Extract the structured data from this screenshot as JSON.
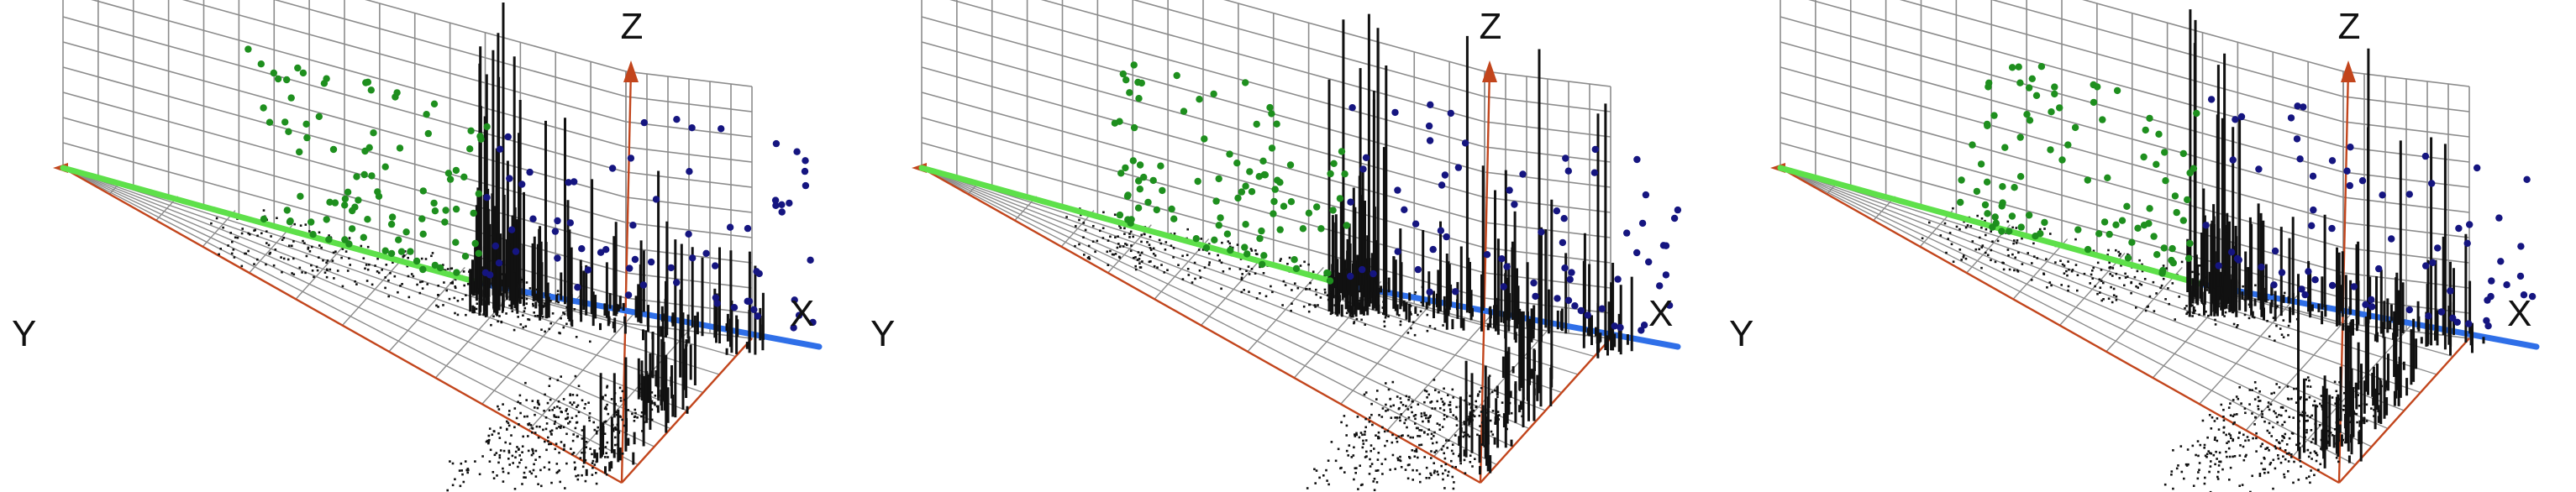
{
  "colors": {
    "background": "#ffffff",
    "grid": "#8c8c8c",
    "frame_axis": "#c2451c",
    "ycurve": "#5ee04a",
    "ycurve_dots": "#1e8f1e",
    "xcurve": "#2f6fe8",
    "xcurve_dots": "#151580",
    "spikes": "#111111"
  },
  "chart_data": [
    {
      "type": "scatter",
      "projection": "3d",
      "grid": true,
      "axis_labels": {
        "x": "X",
        "y": "Y",
        "z": "Z"
      },
      "seed": 11,
      "series": [
        {
          "role": "y-wall-points",
          "color": "#1e8f1e",
          "count": 95
        },
        {
          "role": "x-wall-points",
          "color": "#151580",
          "count": 70
        },
        {
          "role": "floor-spikes",
          "color": "#111111",
          "count": 260
        },
        {
          "role": "y-curve",
          "color": "#5ee04a"
        },
        {
          "role": "x-curve",
          "color": "#2f6fe8"
        }
      ]
    },
    {
      "type": "scatter",
      "projection": "3d",
      "grid": true,
      "axis_labels": {
        "x": "X",
        "y": "Y",
        "z": "Z"
      },
      "seed": 23,
      "series": [
        {
          "role": "y-wall-points",
          "color": "#1e8f1e",
          "count": 95
        },
        {
          "role": "x-wall-points",
          "color": "#151580",
          "count": 70
        },
        {
          "role": "floor-spikes",
          "color": "#111111",
          "count": 260
        },
        {
          "role": "y-curve",
          "color": "#5ee04a"
        },
        {
          "role": "x-curve",
          "color": "#2f6fe8"
        }
      ]
    },
    {
      "type": "scatter",
      "projection": "3d",
      "grid": true,
      "axis_labels": {
        "x": "X",
        "y": "Y",
        "z": "Z"
      },
      "seed": 37,
      "series": [
        {
          "role": "y-wall-points",
          "color": "#1e8f1e",
          "count": 95
        },
        {
          "role": "x-wall-points",
          "color": "#151580",
          "count": 70
        },
        {
          "role": "floor-spikes",
          "color": "#111111",
          "count": 260
        },
        {
          "role": "y-curve",
          "color": "#5ee04a"
        },
        {
          "role": "x-curve",
          "color": "#2f6fe8"
        }
      ]
    }
  ]
}
